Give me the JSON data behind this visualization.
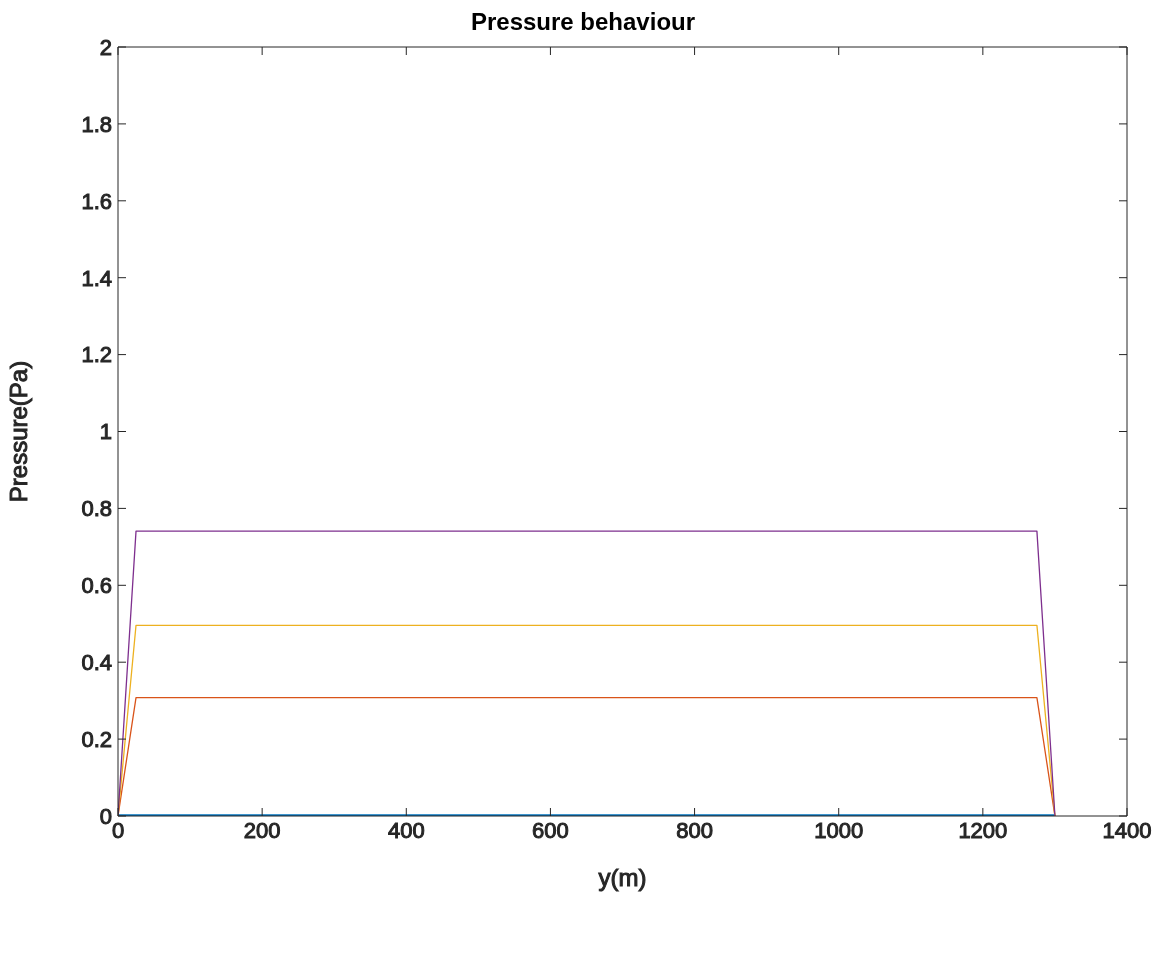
{
  "chart_data": {
    "type": "line",
    "title": "Pressure behaviour",
    "xlabel": "y(m)",
    "ylabel": "Pressure(Pa)",
    "xlim": [
      0,
      1400
    ],
    "xticks": [
      0,
      200,
      400,
      600,
      800,
      1000,
      1200,
      1400
    ],
    "ylim": [
      0,
      2
    ],
    "yticks": [
      0,
      0.2,
      0.4,
      0.6,
      0.8,
      1,
      1.2,
      1.4,
      1.6,
      1.8,
      2
    ],
    "grid": false,
    "legend": false,
    "line_style": "solid",
    "marker": "none",
    "series": [
      {
        "color": "#0072bd",
        "x": [
          0,
          1300
        ],
        "values": [
          0,
          0
        ]
      },
      {
        "color": "#d95319",
        "x": [
          0,
          25,
          1275,
          1300
        ],
        "values": [
          0,
          0.308,
          0.308,
          0
        ]
      },
      {
        "color": "#edb120",
        "x": [
          0,
          25,
          1275,
          1300
        ],
        "values": [
          0,
          0.496,
          0.496,
          0
        ]
      },
      {
        "color": "#7e2f8e",
        "x": [
          0,
          25,
          1275,
          1300
        ],
        "values": [
          0,
          0.741,
          0.741,
          0
        ]
      }
    ]
  }
}
